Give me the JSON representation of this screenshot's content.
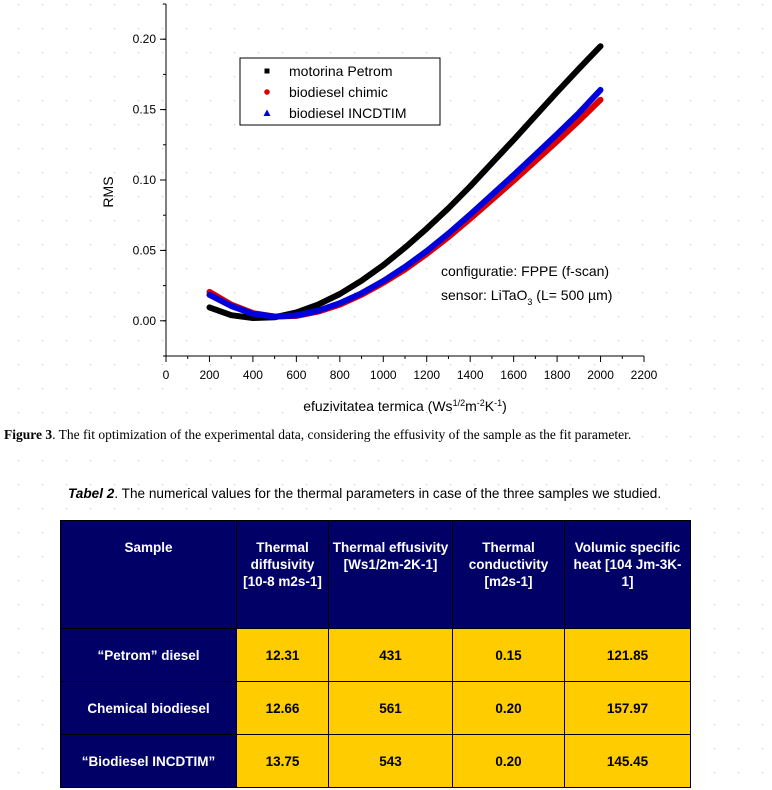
{
  "chart_data": {
    "type": "line",
    "xlabel_parts": [
      "efuzivitatea termica (Ws",
      "1/2",
      "m",
      "-2",
      "K",
      "-1",
      ")"
    ],
    "ylabel": "RMS",
    "xlim": [
      0,
      2200
    ],
    "ylim": [
      -0.025,
      0.225
    ],
    "xticks": [
      "0",
      "200",
      "400",
      "600",
      "800",
      "1000",
      "1200",
      "1400",
      "1600",
      "1800",
      "2000",
      "2200"
    ],
    "yticks": [
      "0.00",
      "0.05",
      "0.10",
      "0.15",
      "0.20"
    ],
    "grid": false,
    "legend": "top-left",
    "annotation_line1": "configuratie: FPPE (f-scan)",
    "annotation_line2_parts": [
      "sensor: LiTaO",
      "3",
      " (L= 500 µm)"
    ],
    "x": [
      200,
      300,
      400,
      500,
      600,
      700,
      800,
      900,
      1000,
      1100,
      1200,
      1300,
      1400,
      1500,
      1600,
      1700,
      1800,
      1900,
      2000
    ],
    "series": [
      {
        "name": "motorina Petrom",
        "color": "#000000",
        "marker": "square",
        "values": [
          0.0095,
          0.004,
          0.002,
          0.0025,
          0.006,
          0.0115,
          0.019,
          0.0285,
          0.0395,
          0.052,
          0.0655,
          0.08,
          0.0955,
          0.112,
          0.1285,
          0.1455,
          0.1625,
          0.179,
          0.195
        ]
      },
      {
        "name": "biodiesel chimic",
        "color": "#dd0000",
        "marker": "circle",
        "values": [
          0.0205,
          0.0115,
          0.0055,
          0.003,
          0.0035,
          0.0065,
          0.0115,
          0.0185,
          0.027,
          0.0365,
          0.0475,
          0.0595,
          0.0725,
          0.086,
          0.0995,
          0.1135,
          0.1275,
          0.142,
          0.157
        ]
      },
      {
        "name": "biodiesel INCDTIM",
        "color": "#0000dd",
        "marker": "triangle",
        "values": [
          0.0185,
          0.0105,
          0.005,
          0.003,
          0.0038,
          0.0072,
          0.0125,
          0.0195,
          0.0283,
          0.0383,
          0.0495,
          0.062,
          0.0755,
          0.0895,
          0.1035,
          0.118,
          0.1325,
          0.1475,
          0.164
        ]
      }
    ]
  },
  "figure_caption": {
    "label": "Figure 3",
    "text": ". The fit optimization of the experimental data, considering the effusivity of the sample as the fit parameter."
  },
  "table_caption": {
    "label": "Tabel 2",
    "text": ". The numerical values for the thermal parameters in case of the three samples we studied."
  },
  "table": {
    "headers": [
      "Sample",
      "Thermal diffusivity [10-8 m2s-1]",
      "Thermal effusivity [Ws1/2m-2K-1]",
      "Thermal conductivity [m2s-1]",
      "Volumic specific heat [104 Jm-3K-1]"
    ],
    "rows": [
      [
        "“Petrom” diesel",
        "12.31",
        "431",
        "0.15",
        "121.85"
      ],
      [
        "Chemical biodiesel",
        "12.66",
        "561",
        "0.20",
        "157.97"
      ],
      [
        "“Biodiesel INCDTIM”",
        "13.75",
        "543",
        "0.20",
        "145.45"
      ]
    ]
  }
}
